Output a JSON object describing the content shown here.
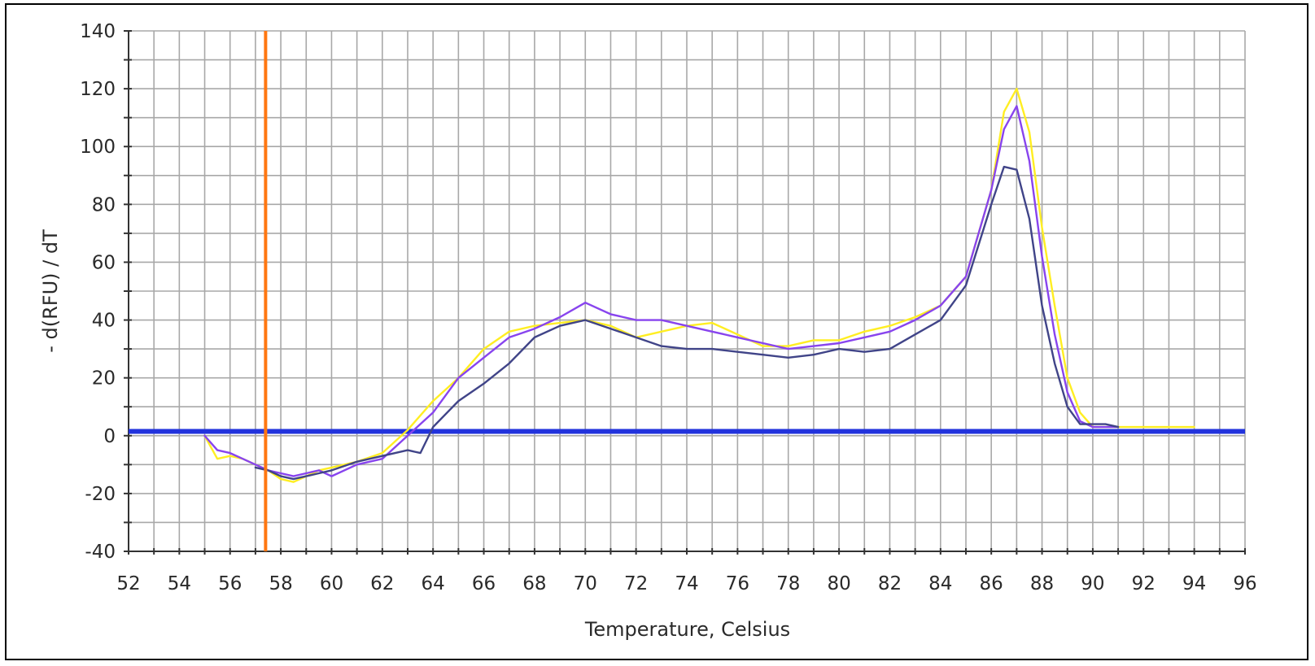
{
  "chart_data": {
    "type": "line",
    "title": "",
    "xlabel": "Temperature, Celsius",
    "ylabel": "- d(RFU) / dT",
    "xlim": [
      52,
      96
    ],
    "ylim": [
      -40,
      140
    ],
    "x_ticks": [
      52,
      54,
      56,
      58,
      60,
      62,
      64,
      66,
      68,
      70,
      72,
      74,
      76,
      78,
      80,
      82,
      84,
      86,
      88,
      90,
      92,
      94,
      96
    ],
    "y_ticks": [
      -40,
      -20,
      0,
      20,
      40,
      60,
      80,
      100,
      120,
      140
    ],
    "x_tick_labels": [
      "52",
      "54",
      "56",
      "58",
      "60",
      "62",
      "64",
      "66",
      "68",
      "70",
      "72",
      "74",
      "76",
      "78",
      "80",
      "82",
      "84",
      "86",
      "88",
      "90",
      "92",
      "94",
      "96"
    ],
    "y_tick_labels": [
      "-40",
      "-20",
      "0",
      "20",
      "40",
      "60",
      "80",
      "100",
      "120",
      "140"
    ],
    "grid": true,
    "grid_minor_step": {
      "x": 1,
      "y": 10
    },
    "legend": "none",
    "colors": {
      "grid": "#a8a8a8",
      "axis": "#333333",
      "threshold_line": "#2233dd",
      "marker_line": "#ff7711"
    },
    "threshold": 1.5,
    "marker_x": 57.4,
    "series": [
      {
        "color": "#ffee22",
        "x": [
          55,
          55.5,
          56,
          56.5,
          57,
          57.5,
          58,
          58.5,
          59,
          59.5,
          60,
          61,
          62,
          63,
          64,
          65,
          66,
          67,
          68,
          69,
          70,
          71,
          72,
          73,
          74,
          75,
          76,
          77,
          78,
          79,
          80,
          81,
          82,
          83,
          84,
          85,
          86,
          86.5,
          87,
          87.5,
          88,
          88.5,
          89,
          89.5,
          90,
          90.5,
          91,
          92,
          93,
          94
        ],
        "y": [
          0,
          -8,
          -7,
          -8,
          -10,
          -12,
          -15,
          -16,
          -14,
          -12,
          -11,
          -9,
          -6,
          2,
          12,
          20,
          30,
          36,
          38,
          39,
          40,
          38,
          34,
          36,
          38,
          39,
          35,
          31,
          31,
          33,
          33,
          36,
          38,
          41,
          45,
          55,
          85,
          112,
          120,
          105,
          72,
          45,
          20,
          8,
          3,
          3,
          3,
          3,
          3,
          3
        ]
      },
      {
        "color": "#8844ee",
        "x": [
          55,
          55.5,
          56,
          56.5,
          57,
          57.5,
          58,
          58.5,
          59,
          59.5,
          60,
          61,
          62,
          63,
          64,
          65,
          66,
          67,
          68,
          69,
          70,
          71,
          72,
          73,
          74,
          75,
          76,
          77,
          78,
          79,
          80,
          81,
          82,
          83,
          84,
          85,
          86,
          86.5,
          87,
          87.5,
          88,
          88.5,
          89,
          89.5,
          90,
          90.5,
          91
        ],
        "y": [
          0,
          -5,
          -6,
          -8,
          -10,
          -12,
          -13,
          -14,
          -13,
          -12,
          -14,
          -10,
          -8,
          0,
          8,
          20,
          27,
          34,
          37,
          41,
          46,
          42,
          40,
          40,
          38,
          36,
          34,
          32,
          30,
          31,
          32,
          34,
          36,
          40,
          45,
          55,
          85,
          106,
          114,
          95,
          62,
          35,
          15,
          5,
          3,
          3,
          3
        ]
      },
      {
        "color": "#404488",
        "x": [
          57,
          57.5,
          58,
          58.5,
          59,
          59.5,
          60,
          61,
          62,
          63,
          63.5,
          64,
          65,
          66,
          67,
          68,
          69,
          70,
          71,
          72,
          73,
          74,
          75,
          76,
          77,
          78,
          79,
          80,
          81,
          82,
          83,
          84,
          85,
          86,
          86.5,
          87,
          87.5,
          88,
          88.5,
          89,
          89.5,
          90,
          90.5,
          91
        ],
        "y": [
          -11,
          -12,
          -14,
          -15,
          -14,
          -13,
          -12,
          -9,
          -7,
          -5,
          -6,
          3,
          12,
          18,
          25,
          34,
          38,
          40,
          37,
          34,
          31,
          30,
          30,
          29,
          28,
          27,
          28,
          30,
          29,
          30,
          35,
          40,
          52,
          80,
          93,
          92,
          75,
          45,
          25,
          10,
          4,
          4,
          4,
          3
        ]
      }
    ]
  }
}
